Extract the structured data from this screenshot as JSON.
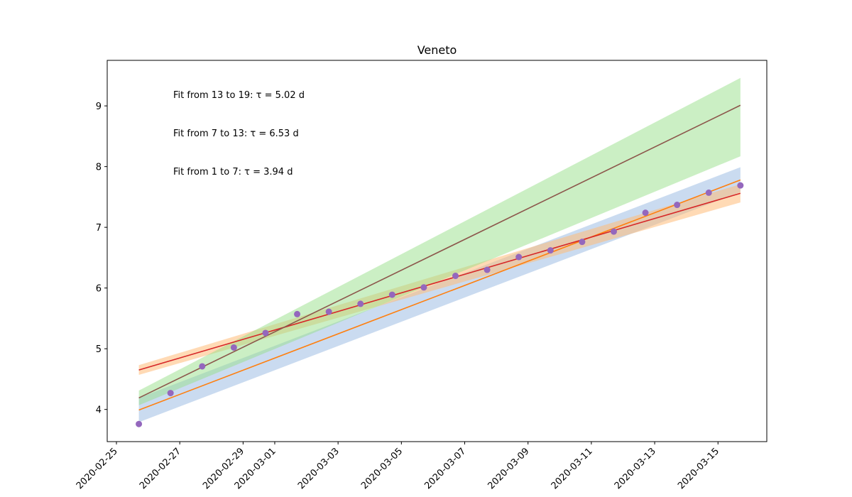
{
  "chart_data": {
    "type": "line",
    "title": "Veneto",
    "xlabel": "",
    "ylabel": "",
    "grid": false,
    "x_type": "date",
    "xlim": [
      "2020-02-24T17:00",
      "2020-03-16T13:00"
    ],
    "ylim": [
      3.47,
      9.75
    ],
    "x_ticks": [
      "2020-02-25",
      "2020-02-27",
      "2020-02-29",
      "2020-03-01",
      "2020-03-03",
      "2020-03-05",
      "2020-03-07",
      "2020-03-09",
      "2020-03-11",
      "2020-03-13",
      "2020-03-15"
    ],
    "y_ticks": [
      4,
      5,
      6,
      7,
      8,
      9
    ],
    "annotations": [
      {
        "text": "Fit from 13 to 19: τ = 5.02 d"
      },
      {
        "text": "Fit from 7 to 13: τ = 6.53 d"
      },
      {
        "text": "Fit from 1 to 7: τ = 3.94 d"
      }
    ],
    "scatter": {
      "color": "#9467bd",
      "x": [
        "2020-02-25T17:00",
        "2020-02-26T17:00",
        "2020-02-27T17:00",
        "2020-02-28T17:00",
        "2020-02-29T17:00",
        "2020-03-01T17:00",
        "2020-03-02T17:00",
        "2020-03-03T17:00",
        "2020-03-04T17:00",
        "2020-03-05T17:00",
        "2020-03-06T17:00",
        "2020-03-07T17:00",
        "2020-03-08T17:00",
        "2020-03-09T17:00",
        "2020-03-10T17:00",
        "2020-03-11T17:00",
        "2020-03-12T17:00",
        "2020-03-13T17:00",
        "2020-03-14T17:00",
        "2020-03-15T17:00"
      ],
      "y": [
        3.76,
        4.27,
        4.71,
        5.02,
        5.26,
        5.57,
        5.61,
        5.74,
        5.89,
        6.01,
        6.2,
        6.3,
        6.51,
        6.62,
        6.76,
        6.93,
        7.24,
        7.37,
        7.57,
        7.69
      ]
    },
    "fits": [
      {
        "line_color": "#ff7f0e",
        "band_color": "#aec7e8",
        "band_opacity": 0.65,
        "x": [
          "2020-02-25T17:00",
          "2020-03-15T17:00"
        ],
        "y": [
          3.99,
          7.78
        ],
        "band_lower": [
          3.79,
          7.58
        ],
        "band_upper": [
          4.19,
          7.99
        ]
      },
      {
        "line_color": "#d62728",
        "band_color": "#ffbb78",
        "band_opacity": 0.55,
        "x": [
          "2020-02-25T17:00",
          "2020-03-15T17:00"
        ],
        "y": [
          4.65,
          7.56
        ],
        "band_lower": [
          4.57,
          7.41
        ],
        "band_upper": [
          4.73,
          7.71
        ]
      },
      {
        "line_color": "#8c564b",
        "band_color": "#98df8a",
        "band_opacity": 0.5,
        "x": [
          "2020-02-25T17:00",
          "2020-03-15T17:00"
        ],
        "y": [
          4.19,
          9.01
        ],
        "band_lower": [
          4.07,
          8.17
        ],
        "band_upper": [
          4.31,
          9.46
        ]
      }
    ]
  }
}
